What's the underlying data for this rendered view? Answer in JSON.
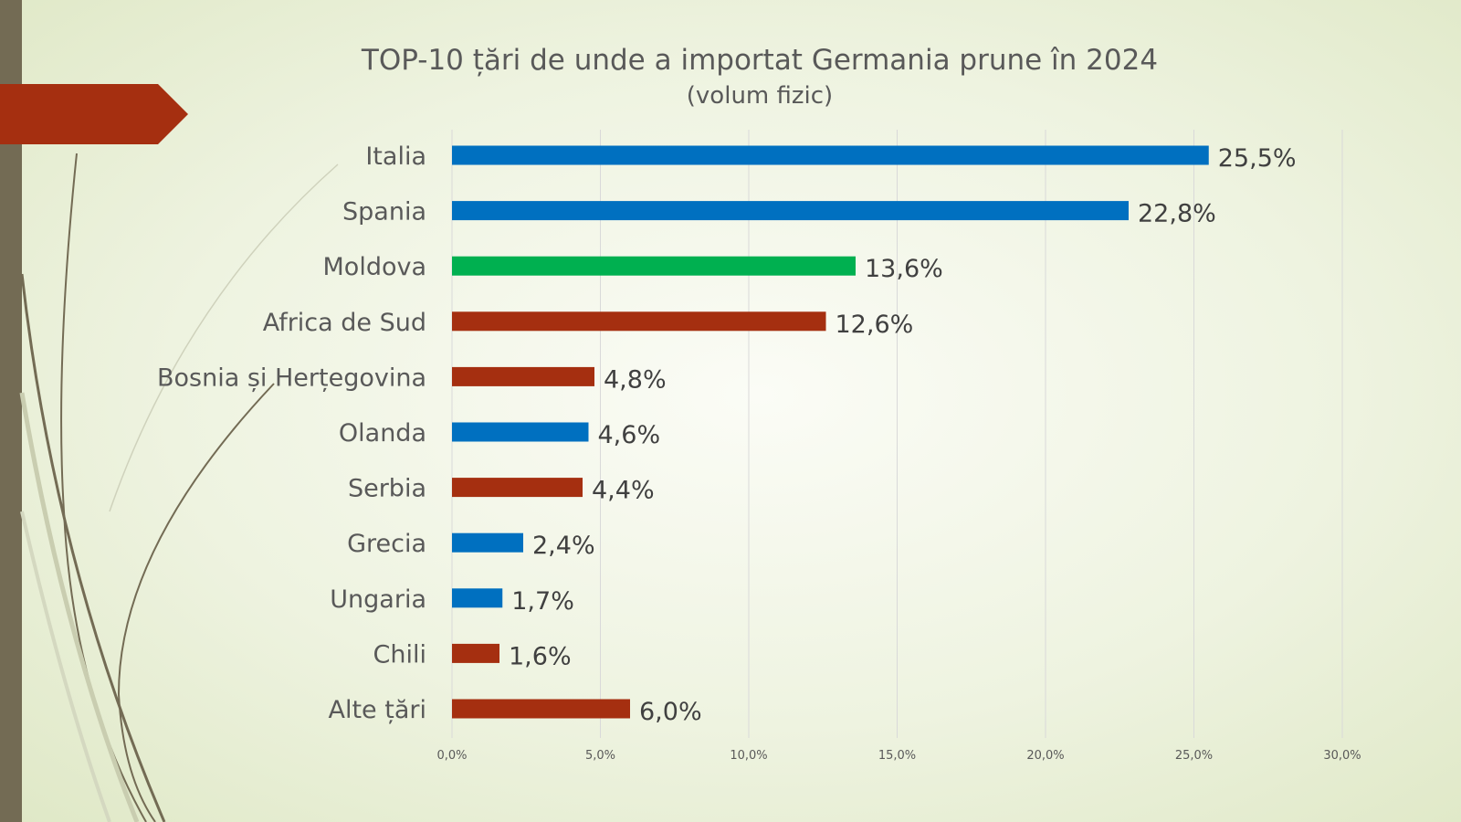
{
  "chart_data": {
    "type": "bar",
    "orientation": "horizontal",
    "title": "TOP-10 țări de unde a importat Germania prune în 2024",
    "subtitle": "(volum fizic)",
    "categories": [
      "Italia",
      "Spania",
      "Moldova",
      "Africa de Sud",
      "Bosnia și Herțegovina",
      "Olanda",
      "Serbia",
      "Grecia",
      "Ungaria",
      "Chili",
      "Alte țări"
    ],
    "values": [
      25.5,
      22.8,
      13.6,
      12.6,
      4.8,
      4.6,
      4.4,
      2.4,
      1.7,
      1.6,
      6.0
    ],
    "data_labels": [
      "25,5%",
      "22,8%",
      "13,6%",
      "12,6%",
      "4,8%",
      "4,6%",
      "4,4%",
      "2,4%",
      "1,7%",
      "1,6%",
      "6,0%"
    ],
    "bar_colors": [
      "#0070c0",
      "#0070c0",
      "#00b050",
      "#a52f10",
      "#a52f10",
      "#0070c0",
      "#a52f10",
      "#0070c0",
      "#0070c0",
      "#a52f10",
      "#a52f10"
    ],
    "xlim": [
      0,
      30
    ],
    "xticks": [
      "0,0%",
      "5,0%",
      "10,0%",
      "15,0%",
      "20,0%",
      "25,0%",
      "30,0%"
    ],
    "xtick_values": [
      0,
      5,
      10,
      15,
      20,
      25,
      30
    ],
    "grid": true,
    "legend": "none"
  },
  "theme": {
    "accent": "#a52f10",
    "sidebar": "#736b54"
  }
}
